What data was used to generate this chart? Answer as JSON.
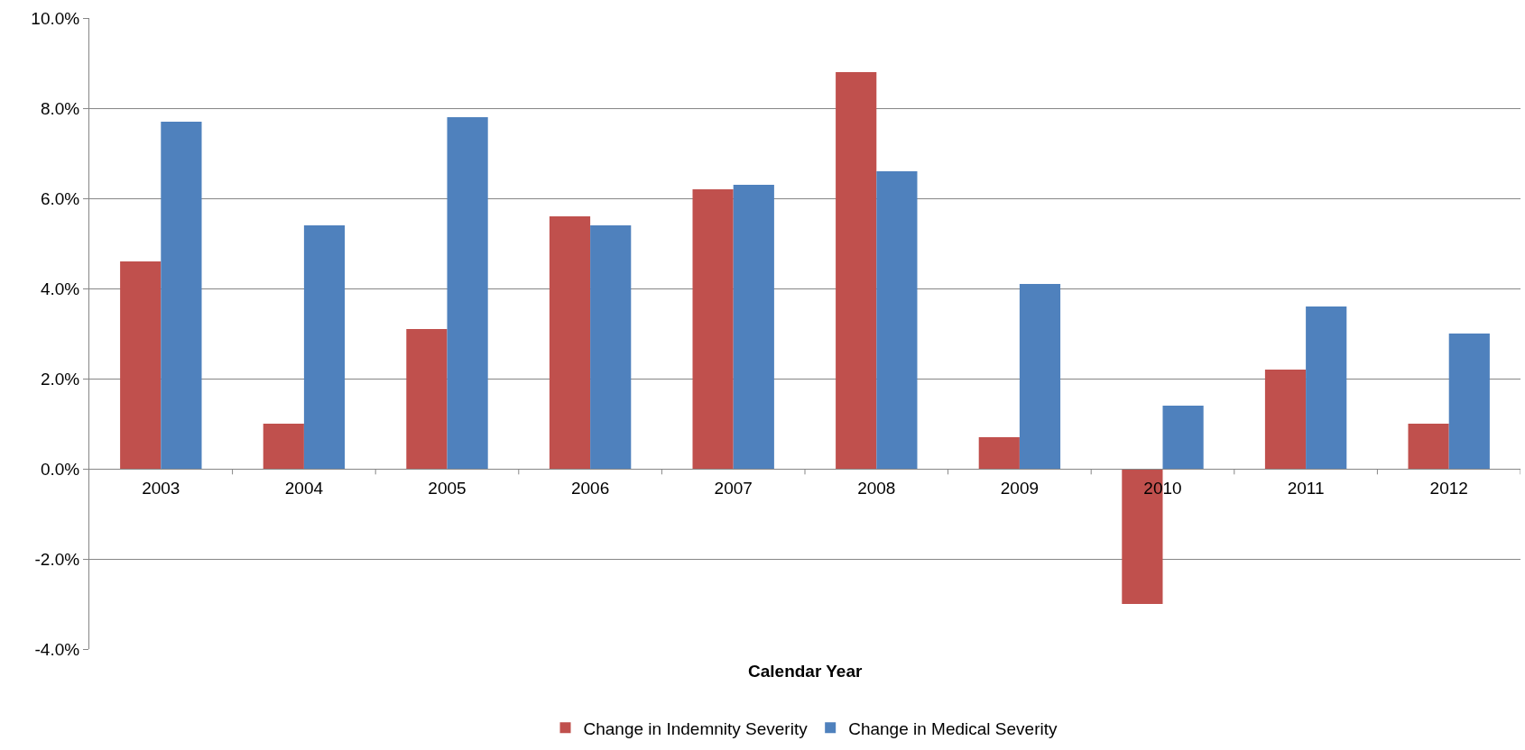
{
  "chart_data": {
    "type": "bar",
    "xlabel": "Calendar Year",
    "categories": [
      "2003",
      "2004",
      "2005",
      "2006",
      "2007",
      "2008",
      "2009",
      "2010",
      "2011",
      "2012"
    ],
    "series": [
      {
        "name": "Change in Indemnity Severity",
        "color": "#c0504d",
        "values": [
          4.6,
          1.0,
          3.1,
          5.6,
          6.2,
          8.8,
          0.7,
          -3.0,
          2.2,
          1.0
        ]
      },
      {
        "name": "Change in Medical Severity",
        "color": "#4f81bd",
        "values": [
          7.7,
          5.4,
          7.8,
          5.4,
          6.3,
          6.6,
          4.1,
          1.4,
          3.6,
          3.0
        ]
      }
    ],
    "ylim": [
      -4,
      10
    ],
    "yticks": [
      {
        "value": -4,
        "label": "-4.0%"
      },
      {
        "value": -2,
        "label": "-2.0%"
      },
      {
        "value": 0,
        "label": "0.0%"
      },
      {
        "value": 2,
        "label": "2.0%"
      },
      {
        "value": 4,
        "label": "4.0%"
      },
      {
        "value": 6,
        "label": "6.0%"
      },
      {
        "value": 8,
        "label": "8.0%"
      },
      {
        "value": 10,
        "label": "10.0%"
      }
    ],
    "grid": "y",
    "legend": "bottom"
  }
}
